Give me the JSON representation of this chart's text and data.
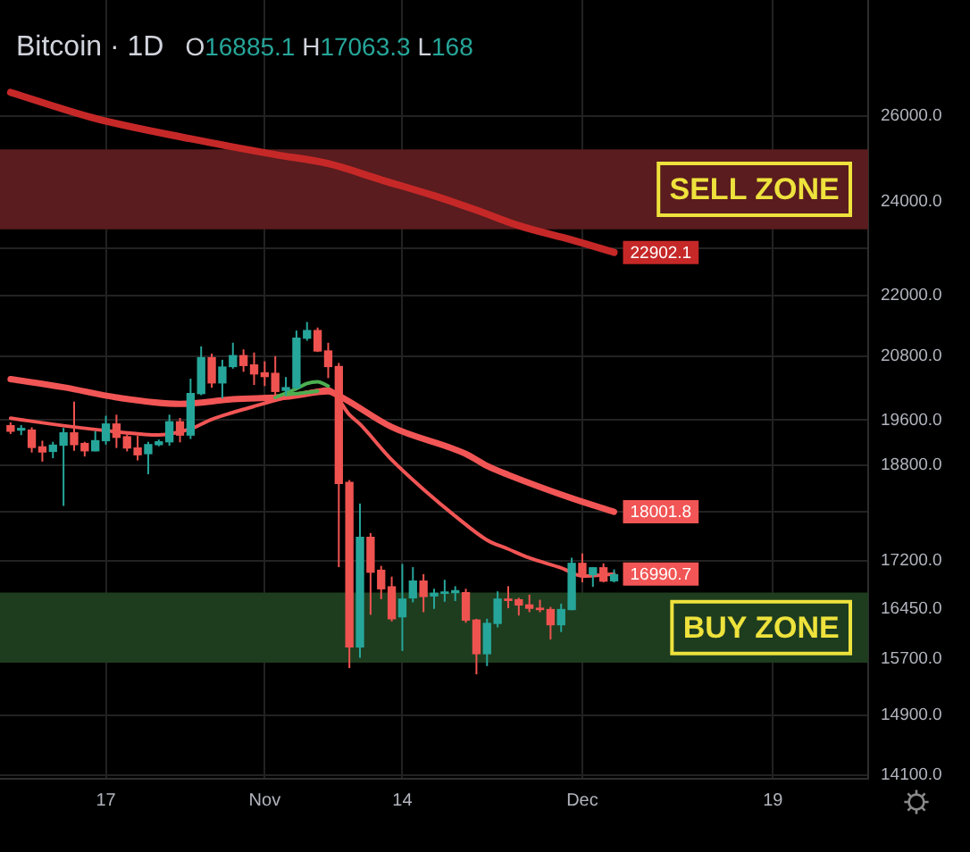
{
  "chart_data": {
    "type": "candlestick",
    "title": "Bitcoin · 1D",
    "annotations": [
      "O16885.1 H17063.3 L168",
      {
        "text": "22902.1",
        "x": "--12-04",
        "y": 22902.1
      },
      {
        "text": "18001.8",
        "x": "--12-04",
        "y": 18001.8
      },
      {
        "text": "16990.7",
        "x": "--12-04",
        "y": 16990.7
      }
    ],
    "x": [
      "--10-08",
      "--10-09",
      "--10-10",
      "--10-11",
      "--10-12",
      "--10-13",
      "--10-14",
      "--10-15",
      "--10-16",
      "--10-17",
      "--10-18",
      "--10-19",
      "--10-20",
      "--10-21",
      "--10-22",
      "--10-23",
      "--10-24",
      "--10-25",
      "--10-26",
      "--10-27",
      "--10-28",
      "--10-29",
      "--10-30",
      "--10-31",
      "--11-01",
      "--11-02",
      "--11-03",
      "--11-04",
      "--11-05",
      "--11-06",
      "--11-07",
      "--11-08",
      "--11-09",
      "--11-10",
      "--11-11",
      "--11-12",
      "--11-13",
      "--11-14",
      "--11-15",
      "--11-16",
      "--11-17",
      "--11-18",
      "--11-19",
      "--11-20",
      "--11-21",
      "--11-22",
      "--11-23",
      "--11-24",
      "--11-25",
      "--11-26",
      "--11-27",
      "--11-28",
      "--11-29",
      "--11-30",
      "--12-01",
      "--12-02",
      "--12-03",
      "--12-04"
    ],
    "ohlc": [
      [
        19500,
        19560,
        19350,
        19400
      ],
      [
        19420,
        19510,
        19330,
        19450
      ],
      [
        19420,
        19470,
        19020,
        19110
      ],
      [
        19120,
        19230,
        18860,
        19030
      ],
      [
        19040,
        19210,
        18920,
        19150
      ],
      [
        19150,
        19460,
        18100,
        19370
      ],
      [
        19370,
        19940,
        19050,
        19160
      ],
      [
        19180,
        19210,
        18950,
        19050
      ],
      [
        19050,
        19400,
        19040,
        19230
      ],
      [
        19230,
        19680,
        19160,
        19530
      ],
      [
        19530,
        19700,
        19100,
        19290
      ],
      [
        19300,
        19340,
        19040,
        19100
      ],
      [
        19100,
        19320,
        18880,
        18980
      ],
      [
        19000,
        19210,
        18640,
        19160
      ],
      [
        19160,
        19250,
        19130,
        19210
      ],
      [
        19210,
        19700,
        19140,
        19570
      ],
      [
        19570,
        19640,
        19200,
        19330
      ],
      [
        19330,
        20370,
        19260,
        20090
      ],
      [
        20090,
        20990,
        20060,
        20770
      ],
      [
        20770,
        20850,
        20200,
        20290
      ],
      [
        20290,
        20730,
        20000,
        20590
      ],
      [
        20600,
        21060,
        20560,
        20810
      ],
      [
        20810,
        20930,
        20500,
        20620
      ],
      [
        20630,
        20870,
        20250,
        20460
      ],
      [
        20480,
        20700,
        20230,
        20410
      ],
      [
        20470,
        20800,
        20040,
        20130
      ],
      [
        20150,
        20400,
        20050,
        20200
      ],
      [
        20200,
        21300,
        20170,
        21150
      ],
      [
        21150,
        21470,
        21100,
        21300
      ],
      [
        21300,
        21360,
        20880,
        20900
      ],
      [
        20900,
        21060,
        20380,
        20600
      ],
      [
        20600,
        20670,
        17100,
        18480
      ],
      [
        18500,
        18540,
        15570,
        15880
      ],
      [
        15880,
        18140,
        15720,
        17580
      ],
      [
        17580,
        17650,
        16360,
        17020
      ],
      [
        17050,
        17120,
        16600,
        16760
      ],
      [
        16790,
        16950,
        16260,
        16300
      ],
      [
        16330,
        17150,
        15820,
        16600
      ],
      [
        16620,
        17100,
        16550,
        16880
      ],
      [
        16880,
        16990,
        16400,
        16640
      ],
      [
        16650,
        16760,
        16450,
        16690
      ],
      [
        16690,
        16900,
        16560,
        16710
      ],
      [
        16700,
        16800,
        16570,
        16730
      ],
      [
        16700,
        16760,
        16240,
        16280
      ],
      [
        16280,
        16300,
        15480,
        15780
      ],
      [
        15780,
        16300,
        15600,
        16230
      ],
      [
        16230,
        16720,
        16170,
        16600
      ],
      [
        16600,
        16800,
        16460,
        16580
      ],
      [
        16590,
        16620,
        16350,
        16510
      ],
      [
        16510,
        16670,
        16400,
        16460
      ],
      [
        16460,
        16590,
        16400,
        16440
      ],
      [
        16440,
        16480,
        15990,
        16210
      ],
      [
        16210,
        16530,
        16100,
        16440
      ],
      [
        16440,
        17250,
        16430,
        17160
      ],
      [
        17160,
        17320,
        16860,
        16980
      ],
      [
        16980,
        17100,
        16790,
        17090
      ],
      [
        17090,
        17160,
        16860,
        16880
      ],
      [
        16885.1,
        17063.3,
        16860,
        16980
      ]
    ],
    "colors": [
      "#ef5350",
      "#26a69a",
      "#ef5350",
      "#ef5350",
      "#26a69a",
      "#26a69a",
      "#ef5350",
      "#ef5350",
      "#26a69a",
      "#26a69a",
      "#ef5350",
      "#ef5350",
      "#ef5350",
      "#26a69a",
      "#26a69a",
      "#26a69a",
      "#ef5350",
      "#26a69a",
      "#26a69a",
      "#ef5350",
      "#26a69a",
      "#26a69a",
      "#ef5350",
      "#ef5350",
      "#ef5350",
      "#ef5350",
      "#26a69a",
      "#26a69a",
      "#26a69a",
      "#ef5350",
      "#ef5350",
      "#ef5350",
      "#ef5350",
      "#26a69a",
      "#ef5350",
      "#ef5350",
      "#ef5350",
      "#26a69a",
      "#26a69a",
      "#ef5350",
      "#26a69a",
      "#26a69a",
      "#26a69a",
      "#ef5350",
      "#ef5350",
      "#26a69a",
      "#26a69a",
      "#ef5350",
      "#ef5350",
      "#ef5350",
      "#ef5350",
      "#ef5350",
      "#26a69a",
      "#26a69a",
      "#ef5350",
      "#26a69a",
      "#ef5350",
      "#26a69a"
    ],
    "series": [
      {
        "type": "line",
        "color": "#c62828",
        "x": [
          "--10-08",
          "--10-16",
          "--10-25",
          "--11-02",
          "--11-07",
          "--11-12",
          "--11-17",
          "--11-21",
          "--11-25",
          "--11-30",
          "--12-04"
        ],
        "values": [
          26570,
          25935,
          25450,
          25080,
          24870,
          24500,
          24140,
          23820,
          23480,
          23170,
          22902.1
        ]
      },
      {
        "type": "line",
        "color": "#f25555",
        "x": [
          "--10-08",
          "--10-13",
          "--10-18",
          "--10-24",
          "--10-29",
          "--11-03",
          "--11-07",
          "--11-08",
          "--11-13",
          "--11-20",
          "--11-22",
          "--11-24",
          "--11-30",
          "--12-04"
        ],
        "values": [
          20360,
          20207,
          20018,
          19899,
          19984,
          20030,
          20130,
          20050,
          19475,
          18996,
          18786,
          18630,
          18230,
          18001.8
        ]
      },
      {
        "type": "line",
        "color": "#f25555",
        "x": [
          "--10-08",
          "--10-13",
          "--10-18",
          "--10-22",
          "--10-25",
          "--10-27",
          "--10-31",
          "--11-03",
          "--11-06",
          "--11-07",
          "--11-09",
          "--11-10",
          "--11-13",
          "--11-16",
          "--11-19",
          "--11-22",
          "--11-24",
          "--11-26",
          "--11-29",
          "--12-01",
          "--12-04"
        ],
        "values": [
          19635,
          19500,
          19390,
          19334,
          19442,
          19615,
          19853,
          20018,
          20150,
          20177,
          19700,
          19528,
          18890,
          18380,
          17930,
          17535,
          17390,
          17247,
          17087,
          16960,
          16990.7
        ]
      },
      {
        "type": "line",
        "color": "#4caf50",
        "x": [
          "--11-02",
          "--11-04",
          "--11-05",
          "--11-06",
          "--11-07"
        ],
        "values": [
          20020,
          20180,
          20280,
          20310,
          20230
        ]
      },
      {
        "type": "line",
        "color": "#4caf50",
        "x": [
          "--11-03",
          "--11-05",
          "--11-06"
        ],
        "values": [
          20070,
          20110,
          20135
        ]
      }
    ],
    "bands": [
      {
        "axis": "y",
        "from": 23400,
        "to": 25200,
        "label": "SELL ZONE",
        "color": "#5a1c1e"
      },
      {
        "axis": "y",
        "from": 15650,
        "to": 16700,
        "label": "BUY ZONE",
        "color": "#1e3d1f"
      }
    ],
    "xlim": [
      "--10-07",
      "--12-28"
    ],
    "xticks": [
      {
        "value": "--10-17",
        "label": "17"
      },
      {
        "value": "--11-01",
        "label": "Nov"
      },
      {
        "value": "--11-14",
        "label": "14"
      },
      {
        "value": "--12-01",
        "label": "Dec"
      },
      {
        "value": "--12-19",
        "label": "19"
      }
    ],
    "ylim": [
      14050,
      28950
    ],
    "yticks": [
      {
        "value": 26000,
        "label": "26000.0"
      },
      {
        "value": 24000,
        "label": "24000.0"
      },
      {
        "value": 23000,
        "label": null
      },
      {
        "value": 22000,
        "label": "22000.0"
      },
      {
        "value": 20800,
        "label": "20800.0"
      },
      {
        "value": 19600,
        "label": "19600.0"
      },
      {
        "value": 18800,
        "label": "18800.0"
      },
      {
        "value": 18000,
        "label": null
      },
      {
        "value": 17200,
        "label": "17200.0"
      },
      {
        "value": 16450,
        "label": "16450.0"
      },
      {
        "value": 15700,
        "label": "15700.0"
      },
      {
        "value": 14900,
        "label": "14900.0"
      },
      {
        "value": 14100,
        "label": "14100.0"
      }
    ],
    "log": true,
    "grid": true
  }
}
